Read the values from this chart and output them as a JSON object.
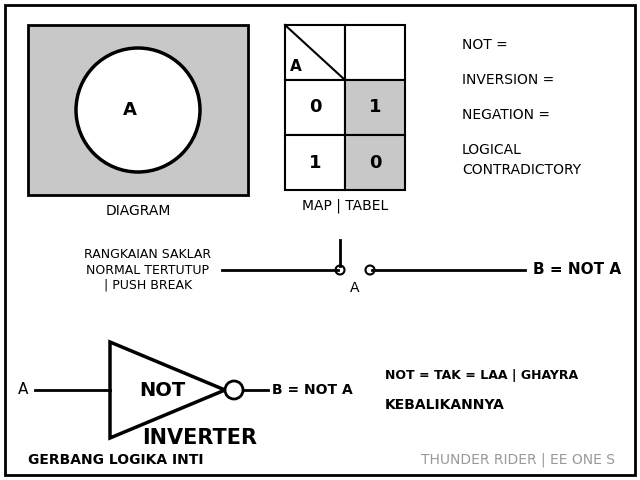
{
  "bg_color": "#ffffff",
  "border_color": "#000000",
  "gray_color": "#c8c8c8",
  "diagram_label": "DIAGRAM",
  "map_label": "MAP | TABEL",
  "not_eq": "NOT =",
  "inversion_eq": "INVERSION =",
  "negation_eq": "NEGATION =",
  "logical_line1": "LOGICAL",
  "logical_line2": "CONTRADICTORY",
  "switch_label1": "RANGKAIAN SAKLAR",
  "switch_label2": "NORMAL TERTUTUP",
  "switch_label3": "| PUSH BREAK",
  "switch_output": "B = NOT A",
  "switch_a": "A",
  "gate_input": "A",
  "gate_label": "NOT",
  "gate_output": "B = NOT A",
  "inverter_label": "INVERTER",
  "not_eq2": "NOT = TAK = LAA | GHAYRA",
  "kebalik": "KEBALIKANNYA",
  "footer_left": "GERBANG LOGIKA INTI",
  "footer_right": "THUNDER RIDER | EE ONE S",
  "table_header": "A",
  "table_rows": [
    [
      "0",
      "1"
    ],
    [
      "1",
      "0"
    ]
  ]
}
